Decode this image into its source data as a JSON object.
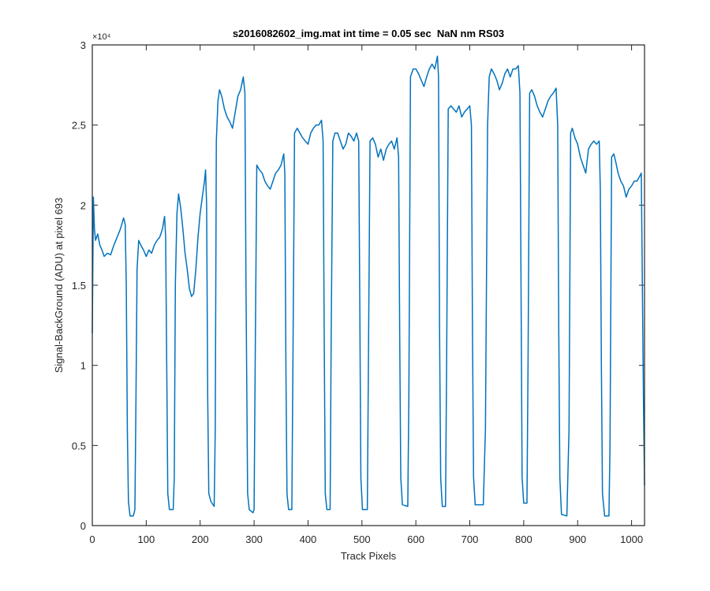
{
  "chart_data": {
    "type": "line",
    "title": "s2016082602_img.mat int time = 0.05 sec  NaN nm RS03",
    "x_label": "Track Pixels",
    "y_label": "Signal-BackGround (ADU) at pixel 693",
    "y_multiplier_label": "×10⁴",
    "xlim": [
      0,
      1024
    ],
    "ylim": [
      0,
      3
    ],
    "xticks": [
      0,
      100,
      200,
      300,
      400,
      500,
      600,
      700,
      800,
      900,
      1000
    ],
    "yticks": [
      0,
      0.5,
      1,
      1.5,
      2,
      2.5,
      3
    ],
    "grid": false,
    "x": [
      0,
      2,
      4,
      6,
      10,
      14,
      18,
      22,
      28,
      34,
      40,
      46,
      52,
      58,
      61,
      63,
      65,
      67,
      70,
      76,
      79,
      81,
      83,
      86,
      90,
      95,
      100,
      105,
      110,
      115,
      120,
      125,
      130,
      134,
      136,
      138,
      140,
      143,
      150,
      152,
      154,
      157,
      160,
      164,
      168,
      172,
      176,
      180,
      184,
      188,
      192,
      196,
      200,
      204,
      208,
      210,
      212,
      214,
      216,
      220,
      226,
      228,
      230,
      233,
      236,
      240,
      245,
      250,
      255,
      260,
      265,
      270,
      275,
      280,
      283,
      285,
      288,
      291,
      298,
      300,
      302,
      305,
      310,
      315,
      320,
      325,
      330,
      335,
      340,
      345,
      350,
      355,
      357,
      359,
      361,
      364,
      370,
      372,
      375,
      380,
      385,
      390,
      395,
      400,
      405,
      410,
      415,
      420,
      425,
      428,
      430,
      432,
      435,
      441,
      443,
      446,
      450,
      455,
      460,
      465,
      470,
      475,
      480,
      485,
      490,
      494,
      496,
      498,
      501,
      510,
      512,
      515,
      520,
      525,
      530,
      535,
      540,
      545,
      550,
      555,
      560,
      565,
      568,
      570,
      572,
      575,
      585,
      587,
      590,
      595,
      600,
      605,
      610,
      615,
      620,
      625,
      630,
      635,
      640,
      642,
      644,
      646,
      649,
      655,
      657,
      660,
      665,
      670,
      675,
      680,
      685,
      690,
      695,
      700,
      703,
      705,
      707,
      710,
      725,
      729,
      733,
      736,
      740,
      745,
      750,
      755,
      760,
      765,
      770,
      775,
      780,
      785,
      790,
      793,
      795,
      797,
      800,
      806,
      808,
      811,
      815,
      820,
      825,
      830,
      835,
      840,
      845,
      850,
      855,
      860,
      863,
      865,
      867,
      870,
      880,
      884,
      887,
      890,
      895,
      900,
      905,
      910,
      915,
      920,
      925,
      930,
      935,
      940,
      942,
      944,
      946,
      950,
      958,
      960,
      963,
      967,
      970,
      975,
      980,
      985,
      990,
      995,
      1000,
      1005,
      1010,
      1015,
      1018,
      1020,
      1022,
      1024
    ],
    "series": [
      {
        "color": "#0072bd",
        "values": [
          1.2,
          2.05,
          1.85,
          1.78,
          1.82,
          1.75,
          1.72,
          1.68,
          1.7,
          1.69,
          1.75,
          1.8,
          1.85,
          1.92,
          1.88,
          1.5,
          0.6,
          0.15,
          0.06,
          0.06,
          0.1,
          0.8,
          1.6,
          1.78,
          1.75,
          1.72,
          1.68,
          1.72,
          1.7,
          1.75,
          1.78,
          1.8,
          1.85,
          1.93,
          1.8,
          1.0,
          0.2,
          0.1,
          0.1,
          0.3,
          1.5,
          1.95,
          2.07,
          1.98,
          1.85,
          1.7,
          1.6,
          1.48,
          1.43,
          1.45,
          1.6,
          1.8,
          1.95,
          2.05,
          2.15,
          2.22,
          2.0,
          0.8,
          0.2,
          0.15,
          0.12,
          0.6,
          2.4,
          2.65,
          2.72,
          2.68,
          2.6,
          2.55,
          2.52,
          2.48,
          2.58,
          2.68,
          2.72,
          2.8,
          2.7,
          1.5,
          0.2,
          0.1,
          0.08,
          0.1,
          1.0,
          2.25,
          2.22,
          2.2,
          2.15,
          2.12,
          2.1,
          2.15,
          2.2,
          2.22,
          2.25,
          2.32,
          2.2,
          1.0,
          0.2,
          0.1,
          0.1,
          1.0,
          2.45,
          2.48,
          2.45,
          2.42,
          2.4,
          2.38,
          2.45,
          2.48,
          2.5,
          2.5,
          2.53,
          2.4,
          1.2,
          0.2,
          0.1,
          0.1,
          1.2,
          2.4,
          2.45,
          2.45,
          2.4,
          2.35,
          2.38,
          2.45,
          2.43,
          2.4,
          2.45,
          2.4,
          1.4,
          0.3,
          0.1,
          0.1,
          1.0,
          2.4,
          2.42,
          2.38,
          2.3,
          2.35,
          2.28,
          2.35,
          2.38,
          2.4,
          2.35,
          2.42,
          2.3,
          1.2,
          0.3,
          0.13,
          0.12,
          0.8,
          2.8,
          2.85,
          2.85,
          2.82,
          2.78,
          2.74,
          2.8,
          2.85,
          2.88,
          2.85,
          2.93,
          2.8,
          1.2,
          0.3,
          0.12,
          0.12,
          1.0,
          2.6,
          2.62,
          2.6,
          2.58,
          2.62,
          2.55,
          2.58,
          2.6,
          2.62,
          2.5,
          1.2,
          0.3,
          0.13,
          0.13,
          0.6,
          2.5,
          2.8,
          2.85,
          2.82,
          2.78,
          2.72,
          2.76,
          2.82,
          2.85,
          2.8,
          2.85,
          2.85,
          2.87,
          2.7,
          1.5,
          0.3,
          0.14,
          0.14,
          1.0,
          2.7,
          2.72,
          2.68,
          2.62,
          2.58,
          2.55,
          2.6,
          2.65,
          2.68,
          2.7,
          2.73,
          2.5,
          1.2,
          0.3,
          0.07,
          0.06,
          0.6,
          2.45,
          2.48,
          2.42,
          2.38,
          2.3,
          2.25,
          2.2,
          2.35,
          2.38,
          2.4,
          2.38,
          2.4,
          2.1,
          1.0,
          0.2,
          0.06,
          0.06,
          0.5,
          2.3,
          2.32,
          2.28,
          2.2,
          2.15,
          2.12,
          2.05,
          2.1,
          2.12,
          2.15,
          2.15,
          2.18,
          2.2,
          1.5,
          0.8,
          0.25
        ]
      }
    ]
  }
}
